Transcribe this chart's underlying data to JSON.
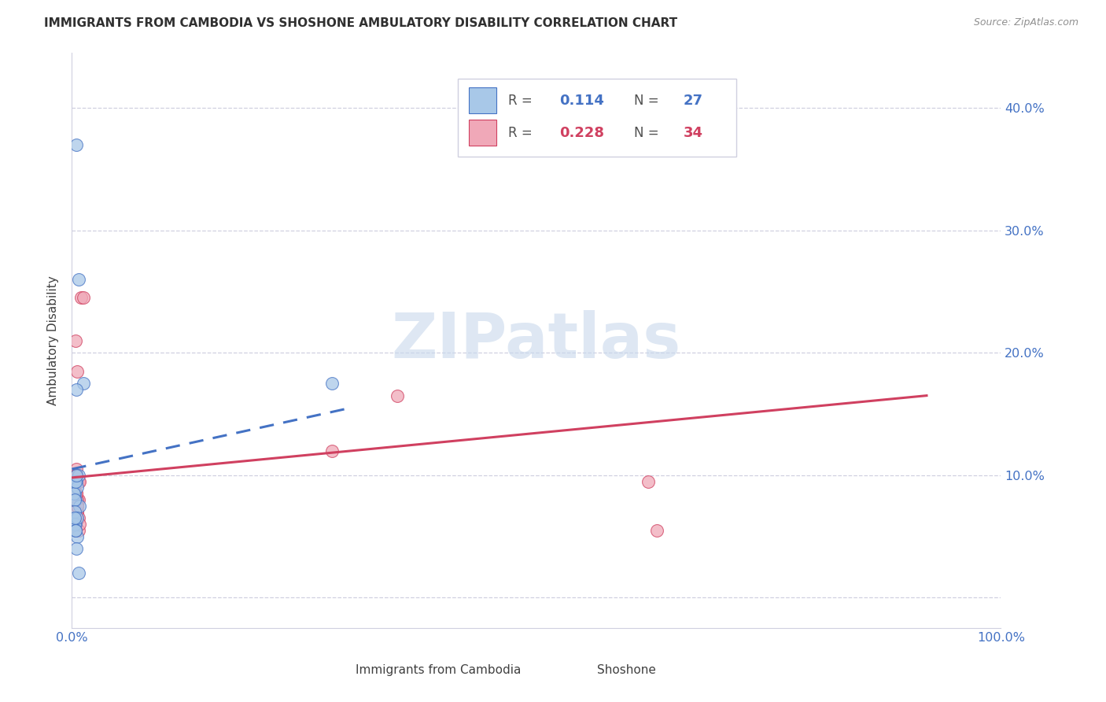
{
  "title": "IMMIGRANTS FROM CAMBODIA VS SHOSHONE AMBULATORY DISABILITY CORRELATION CHART",
  "source": "Source: ZipAtlas.com",
  "ylabel": "Ambulatory Disability",
  "xlim": [
    0.0,
    1.0
  ],
  "ylim": [
    -0.025,
    0.445
  ],
  "yticks": [
    0.0,
    0.1,
    0.2,
    0.3,
    0.4
  ],
  "ytick_labels": [
    "",
    "10.0%",
    "20.0%",
    "30.0%",
    "40.0%"
  ],
  "xticks": [
    0.0,
    0.2,
    0.4,
    0.6,
    0.8,
    1.0
  ],
  "xtick_labels": [
    "0.0%",
    "",
    "",
    "",
    "",
    "100.0%"
  ],
  "blue_color": "#a8c8e8",
  "pink_color": "#f0a8b8",
  "blue_line_color": "#4472c4",
  "pink_line_color": "#d04060",
  "grid_color": "#d0d0e0",
  "tick_color": "#4472c4",
  "title_color": "#303030",
  "source_color": "#909090",
  "watermark_color": "#c8d8ec",
  "watermark": "ZIPatlas",
  "cambodia_x": [
    0.005,
    0.007,
    0.012,
    0.002,
    0.003,
    0.004,
    0.005,
    0.006,
    0.007,
    0.008,
    0.002,
    0.003,
    0.004,
    0.005,
    0.002,
    0.003,
    0.004,
    0.006,
    0.003,
    0.004,
    0.005,
    0.006,
    0.28,
    0.005,
    0.003,
    0.004,
    0.007
  ],
  "cambodia_y": [
    0.37,
    0.26,
    0.175,
    0.095,
    0.085,
    0.08,
    0.095,
    0.09,
    0.1,
    0.075,
    0.085,
    0.08,
    0.095,
    0.1,
    0.065,
    0.07,
    0.06,
    0.05,
    0.06,
    0.055,
    0.17,
    0.065,
    0.175,
    0.04,
    0.065,
    0.055,
    0.02
  ],
  "shoshone_x": [
    0.004,
    0.006,
    0.01,
    0.012,
    0.005,
    0.007,
    0.003,
    0.004,
    0.003,
    0.004,
    0.005,
    0.006,
    0.007,
    0.008,
    0.003,
    0.004,
    0.005,
    0.006,
    0.28,
    0.35,
    0.62,
    0.63,
    0.005,
    0.006,
    0.007,
    0.003,
    0.004,
    0.005,
    0.006,
    0.007,
    0.008,
    0.004,
    0.005,
    0.006
  ],
  "shoshone_y": [
    0.21,
    0.185,
    0.245,
    0.245,
    0.1,
    0.095,
    0.085,
    0.075,
    0.095,
    0.1,
    0.065,
    0.07,
    0.08,
    0.095,
    0.095,
    0.085,
    0.105,
    0.075,
    0.12,
    0.165,
    0.095,
    0.055,
    0.085,
    0.07,
    0.065,
    0.06,
    0.055,
    0.065,
    0.08,
    0.055,
    0.06,
    0.1,
    0.085,
    0.075
  ],
  "blue_line_x": [
    0.0,
    0.3
  ],
  "blue_line_y": [
    0.105,
    0.155
  ],
  "pink_line_x": [
    0.0,
    0.92
  ],
  "pink_line_y": [
    0.098,
    0.165
  ]
}
